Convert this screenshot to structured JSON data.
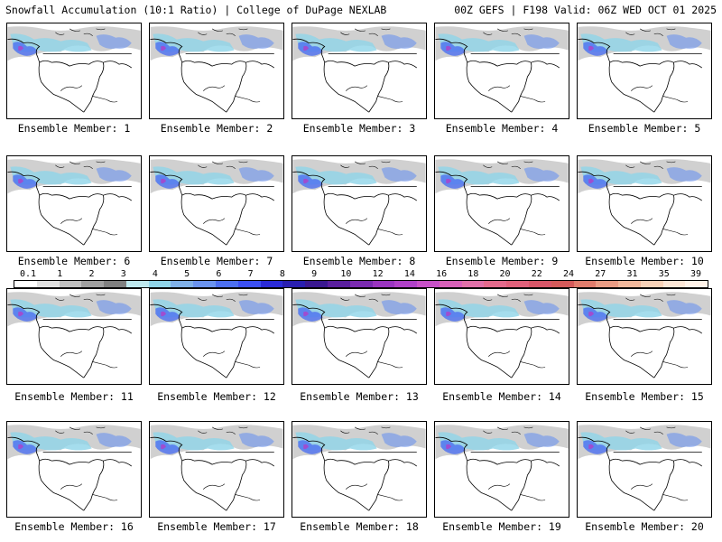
{
  "header": {
    "title_left": "Snowfall Accumulation (10:1 Ratio) | College of DuPage NEXLAB",
    "title_right": "00Z GEFS | F198 Valid: 06Z WED OCT 01 2025"
  },
  "members": [
    {
      "label": "Ensemble Member: 1"
    },
    {
      "label": "Ensemble Member: 2"
    },
    {
      "label": "Ensemble Member: 3"
    },
    {
      "label": "Ensemble Member: 4"
    },
    {
      "label": "Ensemble Member: 5"
    },
    {
      "label": "Ensemble Member: 6"
    },
    {
      "label": "Ensemble Member: 7"
    },
    {
      "label": "Ensemble Member: 8"
    },
    {
      "label": "Ensemble Member: 9"
    },
    {
      "label": "Ensemble Member: 10"
    },
    {
      "label": "Ensemble Member: 11"
    },
    {
      "label": "Ensemble Member: 12"
    },
    {
      "label": "Ensemble Member: 13"
    },
    {
      "label": "Ensemble Member: 14"
    },
    {
      "label": "Ensemble Member: 15"
    },
    {
      "label": "Ensemble Member: 16"
    },
    {
      "label": "Ensemble Member: 17"
    },
    {
      "label": "Ensemble Member: 18"
    },
    {
      "label": "Ensemble Member: 19"
    },
    {
      "label": "Ensemble Member: 20"
    }
  ],
  "legend": {
    "labels": [
      "0.1",
      "1",
      "2",
      "3",
      "4",
      "5",
      "6",
      "7",
      "8",
      "9",
      "10",
      "12",
      "14",
      "16",
      "18",
      "20",
      "22",
      "24",
      "27",
      "31",
      "35",
      "39"
    ],
    "colors": [
      "#ffffff",
      "#e0e0e0",
      "#c0c0c0",
      "#a0a0a0",
      "#808080",
      "#bde8ee",
      "#8fd4e8",
      "#7fb0e8",
      "#6a93ef",
      "#4c6ff0",
      "#3b4ff2",
      "#2b2bd8",
      "#2a1fb0",
      "#3a1890",
      "#5a1f9e",
      "#7a2ab0",
      "#9a34c0",
      "#b040c8",
      "#c850c8",
      "#d860b8",
      "#e070a8",
      "#e46a8c",
      "#e0607a",
      "#d85668",
      "#d45a5a",
      "#e07c6c",
      "#ea9c84",
      "#f2b89c",
      "#f8d2b8",
      "#fce6d6",
      "#fff2e8"
    ]
  }
}
